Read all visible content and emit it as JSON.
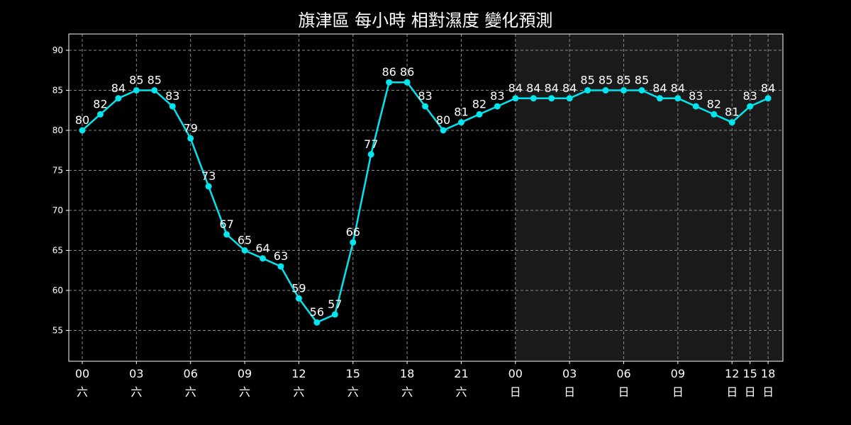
{
  "chart_data": {
    "type": "line",
    "title": "旗津區 每小時 相對濕度 變化預測",
    "xlabel": "",
    "ylabel": "",
    "ylim": [
      51,
      92
    ],
    "yticks": [
      55,
      60,
      65,
      70,
      75,
      80,
      85,
      90
    ],
    "grid": true,
    "colors": {
      "background": "#000000",
      "forecast_background": "#1a1a1a",
      "line": "#00e5ee",
      "text": "#ffffff",
      "grid": "#8a8a8a"
    },
    "x_tick_labels": [
      {
        "index": 0,
        "time": "00",
        "day": "六"
      },
      {
        "index": 3,
        "time": "03",
        "day": "六"
      },
      {
        "index": 6,
        "time": "06",
        "day": "六"
      },
      {
        "index": 9,
        "time": "09",
        "day": "六"
      },
      {
        "index": 12,
        "time": "12",
        "day": "六"
      },
      {
        "index": 15,
        "time": "15",
        "day": "六"
      },
      {
        "index": 18,
        "time": "18",
        "day": "六"
      },
      {
        "index": 21,
        "time": "21",
        "day": "六"
      },
      {
        "index": 24,
        "time": "00",
        "day": "日"
      },
      {
        "index": 27,
        "time": "03",
        "day": "日"
      },
      {
        "index": 30,
        "time": "06",
        "day": "日"
      },
      {
        "index": 33,
        "time": "09",
        "day": "日"
      },
      {
        "index": 36,
        "time": "12",
        "day": "日"
      },
      {
        "index": 37,
        "time": "15",
        "day": "日"
      },
      {
        "index": 38,
        "time": "18",
        "day": "日"
      }
    ],
    "forecast_start_index": 24,
    "values": [
      80,
      82,
      84,
      85,
      85,
      83,
      79,
      73,
      67,
      65,
      64,
      63,
      59,
      56,
      57,
      66,
      77,
      86,
      86,
      83,
      80,
      81,
      82,
      83,
      84,
      84,
      84,
      84,
      85,
      85,
      85,
      85,
      84,
      84,
      83,
      82,
      81,
      83,
      84
    ]
  }
}
